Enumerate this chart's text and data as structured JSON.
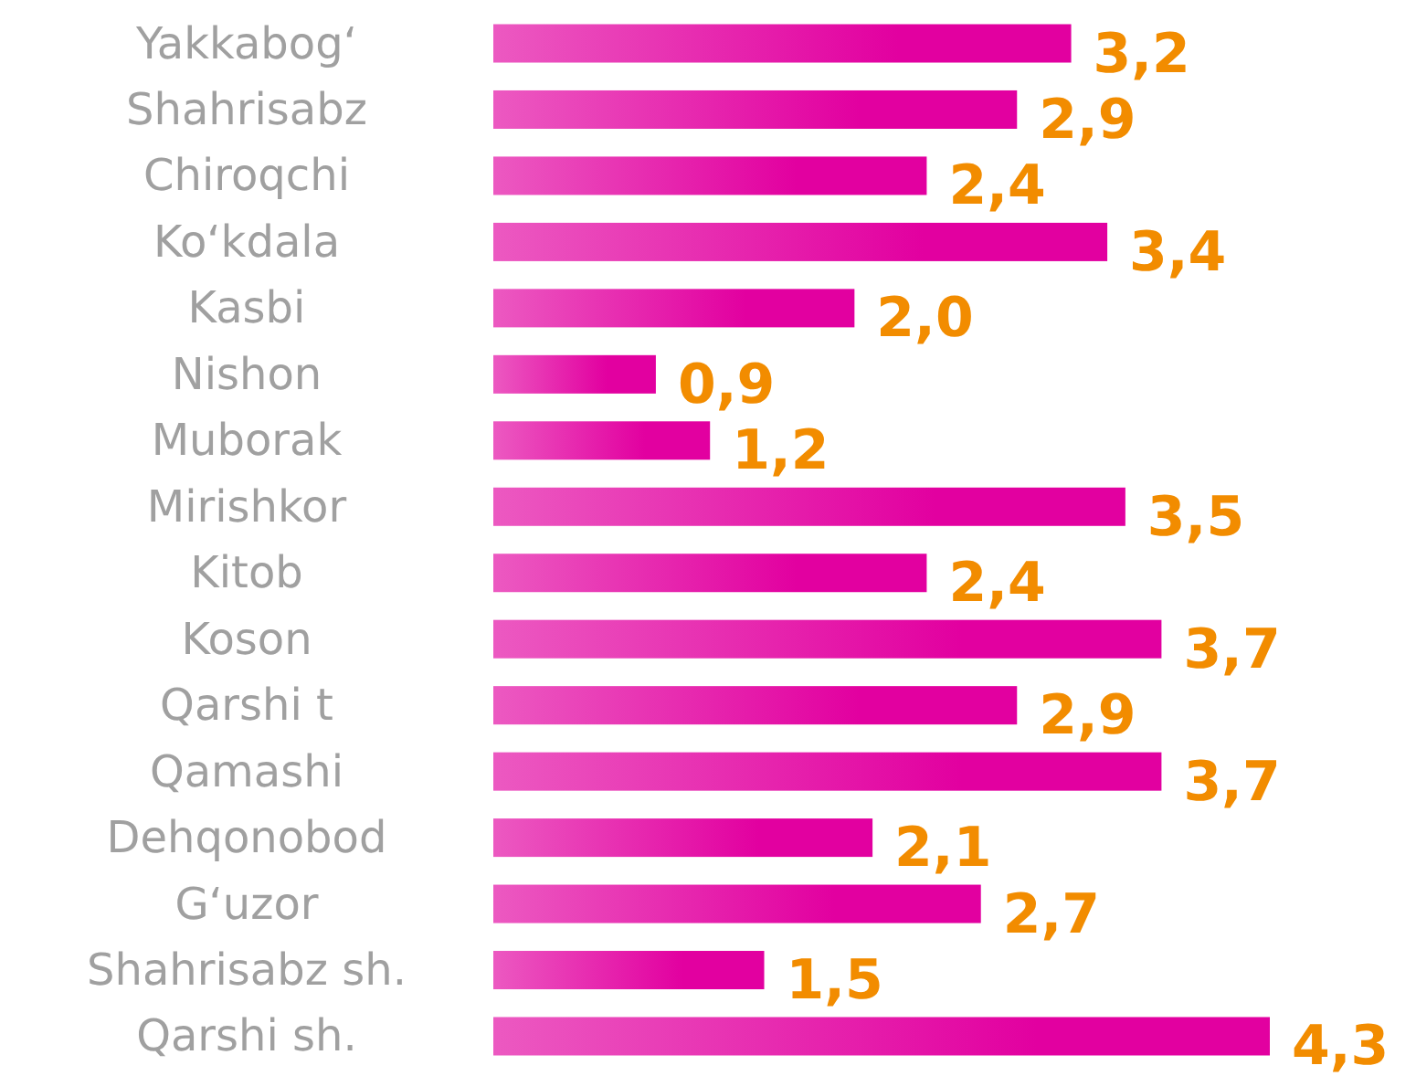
{
  "chart_data": {
    "type": "bar",
    "orientation": "horizontal",
    "categories": [
      "Yakkabog‘",
      "Shahrisabz",
      "Chiroqchi",
      "Ko‘kdala",
      "Kasbi",
      "Nishon",
      "Muborak",
      "Mirishkor",
      "Kitob",
      "Koson",
      "Qarshi t",
      "Qamashi",
      "Dehqonobod",
      "G‘uzor",
      "Shahrisabz sh.",
      "Qarshi sh."
    ],
    "values": [
      3.2,
      2.9,
      2.4,
      3.4,
      2.0,
      0.9,
      1.2,
      3.5,
      2.4,
      3.7,
      2.9,
      3.7,
      2.1,
      2.7,
      1.5,
      4.3
    ],
    "value_labels": [
      "3,2",
      "2,9",
      "2,4",
      "3,4",
      "2,0",
      "0,9",
      "1,2",
      "3,5",
      "2,4",
      "3,7",
      "2,9",
      "3,7",
      "2,1",
      "2,7",
      "1,5",
      "4,3"
    ],
    "color": "#e200a0"
  }
}
